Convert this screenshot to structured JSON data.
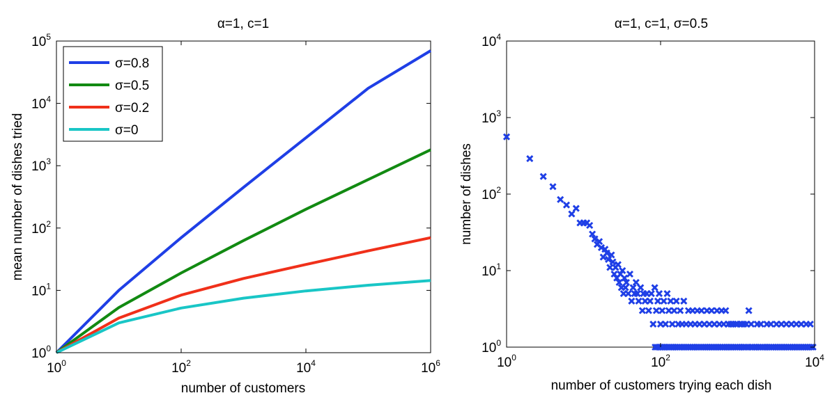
{
  "chart_data": [
    {
      "type": "line",
      "title": "α=1, c=1",
      "xlabel": "number of customers",
      "ylabel": "mean number of dishes tried",
      "xscale": "log",
      "yscale": "log",
      "xlim": [
        1,
        1000000
      ],
      "ylim": [
        1,
        100000
      ],
      "x_ticks": [
        {
          "base": "10",
          "exp": "0"
        },
        {
          "base": "10",
          "exp": "2"
        },
        {
          "base": "10",
          "exp": "4"
        },
        {
          "base": "10",
          "exp": "6"
        }
      ],
      "y_ticks": [
        {
          "base": "10",
          "exp": "0"
        },
        {
          "base": "10",
          "exp": "1"
        },
        {
          "base": "10",
          "exp": "2"
        },
        {
          "base": "10",
          "exp": "3"
        },
        {
          "base": "10",
          "exp": "4"
        },
        {
          "base": "10",
          "exp": "5"
        }
      ],
      "legend_position": "top-left",
      "grid": false,
      "series": [
        {
          "name": "σ=0.8",
          "color": "#1f3fe6",
          "x": [
            1,
            10,
            100,
            1000,
            10000,
            100000,
            1000000
          ],
          "y": [
            1,
            10,
            70,
            450,
            2800,
            17500,
            70000
          ]
        },
        {
          "name": "σ=0.5",
          "color": "#128a12",
          "x": [
            1,
            10,
            100,
            1000,
            10000,
            100000,
            1000000
          ],
          "y": [
            1,
            5.3,
            19,
            63,
            200,
            600,
            1800
          ]
        },
        {
          "name": "σ=0.2",
          "color": "#f0301a",
          "x": [
            1,
            10,
            100,
            1000,
            10000,
            100000,
            1000000
          ],
          "y": [
            1,
            3.6,
            8.4,
            15.5,
            26,
            43,
            70
          ]
        },
        {
          "name": "σ=0",
          "color": "#19c6c6",
          "x": [
            1,
            10,
            100,
            1000,
            10000,
            100000,
            1000000
          ],
          "y": [
            1,
            3.0,
            5.2,
            7.5,
            9.8,
            12.1,
            14.4
          ]
        }
      ]
    },
    {
      "type": "scatter",
      "title": "α=1, c=1, σ=0.5",
      "xlabel": "number of customers trying each dish",
      "ylabel": "number of dishes",
      "xscale": "log",
      "yscale": "log",
      "xlim": [
        1,
        10000
      ],
      "ylim": [
        1,
        10000
      ],
      "x_ticks": [
        {
          "base": "10",
          "exp": "0"
        },
        {
          "base": "10",
          "exp": "2"
        },
        {
          "base": "10",
          "exp": "4"
        }
      ],
      "y_ticks": [
        {
          "base": "10",
          "exp": "0"
        },
        {
          "base": "10",
          "exp": "1"
        },
        {
          "base": "10",
          "exp": "2"
        },
        {
          "base": "10",
          "exp": "3"
        },
        {
          "base": "10",
          "exp": "4"
        }
      ],
      "marker": "x",
      "color": "#1f3fe6",
      "grid": false,
      "points": [
        [
          1,
          560
        ],
        [
          2,
          290
        ],
        [
          3,
          170
        ],
        [
          4,
          125
        ],
        [
          5,
          85
        ],
        [
          6,
          72
        ],
        [
          7,
          55
        ],
        [
          8,
          65
        ],
        [
          9,
          42
        ],
        [
          10,
          42
        ],
        [
          11,
          42
        ],
        [
          12,
          39
        ],
        [
          13,
          30
        ],
        [
          14,
          26
        ],
        [
          15,
          22
        ],
        [
          16,
          24
        ],
        [
          17,
          20
        ],
        [
          18,
          15
        ],
        [
          19,
          19
        ],
        [
          20,
          17
        ],
        [
          21,
          14
        ],
        [
          22,
          11
        ],
        [
          23,
          16
        ],
        [
          24,
          13
        ],
        [
          25,
          9
        ],
        [
          26,
          11
        ],
        [
          27,
          8
        ],
        [
          28,
          12
        ],
        [
          29,
          7
        ],
        [
          30,
          9
        ],
        [
          31,
          6
        ],
        [
          32,
          10
        ],
        [
          33,
          5
        ],
        [
          34,
          8
        ],
        [
          35,
          6
        ],
        [
          36,
          7
        ],
        [
          38,
          5
        ],
        [
          40,
          9
        ],
        [
          42,
          4
        ],
        [
          44,
          6
        ],
        [
          46,
          5
        ],
        [
          48,
          7
        ],
        [
          50,
          5
        ],
        [
          52,
          4
        ],
        [
          55,
          6
        ],
        [
          58,
          3
        ],
        [
          60,
          5
        ],
        [
          63,
          4
        ],
        [
          66,
          5
        ],
        [
          70,
          3
        ],
        [
          73,
          4
        ],
        [
          76,
          5
        ],
        [
          80,
          2
        ],
        [
          84,
          6
        ],
        [
          88,
          3
        ],
        [
          92,
          4
        ],
        [
          96,
          5
        ],
        [
          100,
          2
        ],
        [
          105,
          3
        ],
        [
          110,
          4
        ],
        [
          116,
          2
        ],
        [
          122,
          5
        ],
        [
          128,
          3
        ],
        [
          135,
          4
        ],
        [
          142,
          2
        ],
        [
          150,
          3
        ],
        [
          160,
          4
        ],
        [
          170,
          2
        ],
        [
          180,
          3
        ],
        [
          190,
          2
        ],
        [
          200,
          4
        ],
        [
          215,
          2
        ],
        [
          230,
          3
        ],
        [
          245,
          2
        ],
        [
          260,
          3
        ],
        [
          280,
          2
        ],
        [
          300,
          3
        ],
        [
          320,
          2
        ],
        [
          340,
          3
        ],
        [
          370,
          2
        ],
        [
          400,
          3
        ],
        [
          430,
          2
        ],
        [
          460,
          3
        ],
        [
          500,
          2
        ],
        [
          540,
          3
        ],
        [
          580,
          2
        ],
        [
          620,
          3
        ],
        [
          660,
          2
        ],
        [
          700,
          3
        ],
        [
          760,
          2
        ],
        [
          820,
          2
        ],
        [
          880,
          2
        ],
        [
          950,
          2
        ],
        [
          1000,
          2
        ],
        [
          1100,
          2
        ],
        [
          1200,
          2
        ],
        [
          1300,
          2
        ],
        [
          1400,
          3
        ],
        [
          1500,
          2
        ],
        [
          1800,
          2
        ],
        [
          2000,
          2
        ],
        [
          2400,
          2
        ],
        [
          2700,
          2
        ],
        [
          3200,
          2
        ],
        [
          3700,
          2
        ],
        [
          4300,
          2
        ],
        [
          5000,
          2
        ],
        [
          5800,
          2
        ],
        [
          6700,
          2
        ],
        [
          7800,
          2
        ],
        [
          8800,
          2
        ],
        [
          85,
          1
        ],
        [
          90,
          1
        ],
        [
          95,
          1
        ],
        [
          100,
          1
        ],
        [
          106,
          1
        ],
        [
          112,
          1
        ],
        [
          118,
          1
        ],
        [
          125,
          1
        ],
        [
          132,
          1
        ],
        [
          140,
          1
        ],
        [
          148,
          1
        ],
        [
          156,
          1
        ],
        [
          165,
          1
        ],
        [
          175,
          1
        ],
        [
          185,
          1
        ],
        [
          196,
          1
        ],
        [
          207,
          1
        ],
        [
          219,
          1
        ],
        [
          232,
          1
        ],
        [
          245,
          1
        ],
        [
          260,
          1
        ],
        [
          275,
          1
        ],
        [
          290,
          1
        ],
        [
          307,
          1
        ],
        [
          325,
          1
        ],
        [
          344,
          1
        ],
        [
          364,
          1
        ],
        [
          385,
          1
        ],
        [
          407,
          1
        ],
        [
          430,
          1
        ],
        [
          455,
          1
        ],
        [
          481,
          1
        ],
        [
          509,
          1
        ],
        [
          538,
          1
        ],
        [
          569,
          1
        ],
        [
          602,
          1
        ],
        [
          637,
          1
        ],
        [
          674,
          1
        ],
        [
          713,
          1
        ],
        [
          754,
          1
        ],
        [
          797,
          1
        ],
        [
          843,
          1
        ],
        [
          892,
          1
        ],
        [
          943,
          1
        ],
        [
          1000,
          1
        ],
        [
          1060,
          1
        ],
        [
          1120,
          1
        ],
        [
          1180,
          1
        ],
        [
          1250,
          1
        ],
        [
          1330,
          1
        ],
        [
          1400,
          1
        ],
        [
          1490,
          1
        ],
        [
          1570,
          1
        ],
        [
          1670,
          1
        ],
        [
          1760,
          1
        ],
        [
          1860,
          1
        ],
        [
          1970,
          1
        ],
        [
          2090,
          1
        ],
        [
          2210,
          1
        ],
        [
          2340,
          1
        ],
        [
          2470,
          1
        ],
        [
          2610,
          1
        ],
        [
          2770,
          1
        ],
        [
          2930,
          1
        ],
        [
          3100,
          1
        ],
        [
          3280,
          1
        ],
        [
          3470,
          1
        ],
        [
          3670,
          1
        ],
        [
          3880,
          1
        ],
        [
          4110,
          1
        ],
        [
          4340,
          1
        ],
        [
          4600,
          1
        ],
        [
          4860,
          1
        ],
        [
          5150,
          1
        ],
        [
          5440,
          1
        ],
        [
          5760,
          1
        ],
        [
          6090,
          1
        ],
        [
          6440,
          1
        ],
        [
          6820,
          1
        ],
        [
          7210,
          1
        ],
        [
          7630,
          1
        ],
        [
          8070,
          1
        ],
        [
          8540,
          1
        ],
        [
          9030,
          1
        ],
        [
          9550,
          1
        ]
      ]
    }
  ]
}
